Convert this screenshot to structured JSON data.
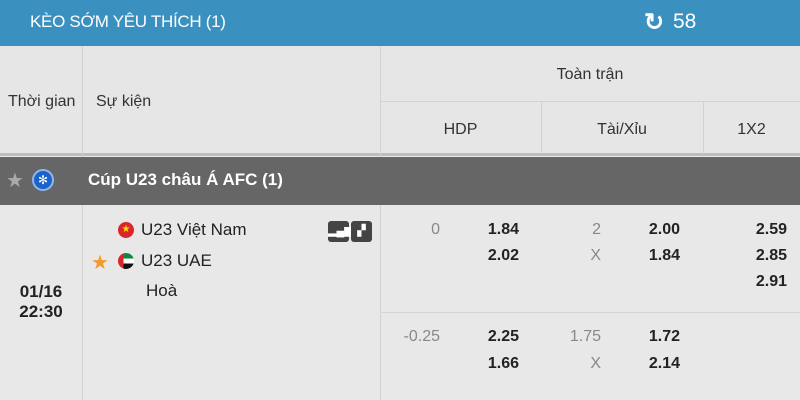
{
  "header": {
    "title": "KÈO SỚM YÊU THÍCH (1)",
    "refresh_icon": "refresh-icon",
    "countdown": "58",
    "color": "#3a91c0"
  },
  "columns": {
    "time": "Thời gian",
    "event": "Sự kiện",
    "group": "Toàn trận",
    "hdp": "HDP",
    "ou": "Tài/Xỉu",
    "x12": "1X2"
  },
  "league": {
    "name": "Cúp U23 châu Á AFC (1)",
    "favorite": false
  },
  "match": {
    "date": "01/16",
    "time": "22:30",
    "home": "U23 Việt Nam",
    "away": "U23 UAE",
    "draw": "Hoà",
    "favorite": true,
    "lines": [
      {
        "hdp": "0",
        "hdp_home": "1.84",
        "hdp_away": "2.02",
        "ou": "2",
        "ou_under": "X",
        "ou_over": "2.00",
        "ou_under_odds": "1.84",
        "x12": [
          "2.59",
          "2.85",
          "2.91"
        ]
      },
      {
        "hdp": "-0.25",
        "hdp_home": "2.25",
        "hdp_away": "1.66",
        "ou": "1.75",
        "ou_under": "X",
        "ou_over": "1.72",
        "ou_under_odds": "2.14"
      }
    ]
  }
}
